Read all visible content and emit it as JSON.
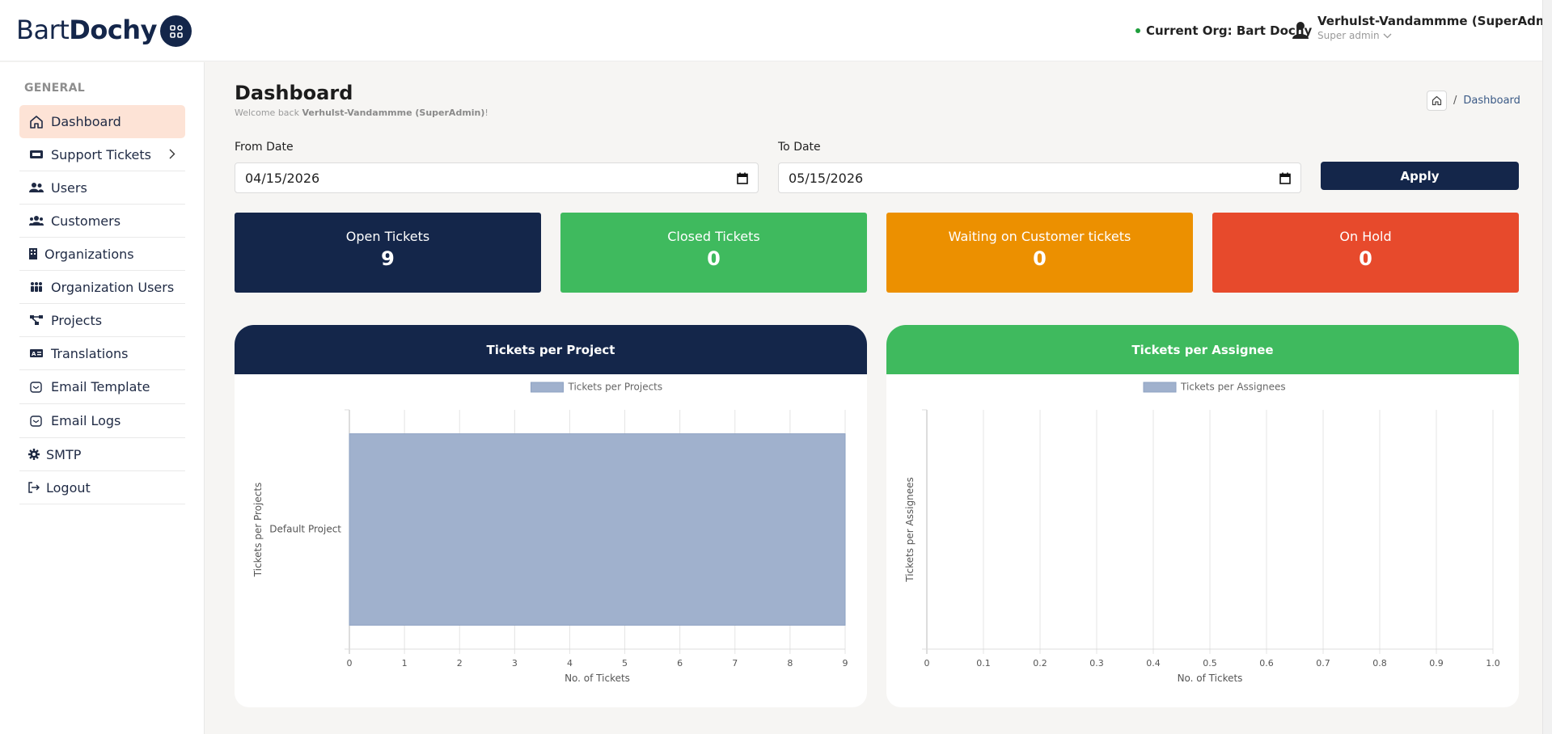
{
  "brand": {
    "part1": "Bart",
    "part2": "Dochy"
  },
  "header": {
    "org": "Current Org: Bart Dochy",
    "user_name": "Verhulst-Vandammme (SuperAdmin)",
    "user_role": "Super admin"
  },
  "sidebar": {
    "section": "GENERAL",
    "items": [
      {
        "label": "Dashboard",
        "icon": "home-icon"
      },
      {
        "label": "Support Tickets",
        "icon": "ticket-icon"
      },
      {
        "label": "Users",
        "icon": "users-icon"
      },
      {
        "label": "Customers",
        "icon": "customers-icon"
      },
      {
        "label": "Organizations",
        "icon": "building-icon"
      },
      {
        "label": "Organization Users",
        "icon": "people-group-icon"
      },
      {
        "label": "Projects",
        "icon": "sitemap-icon"
      },
      {
        "label": "Translations",
        "icon": "translate-icon"
      },
      {
        "label": "Email Template",
        "icon": "email-icon"
      },
      {
        "label": "Email Logs",
        "icon": "email-icon"
      },
      {
        "label": "SMTP",
        "icon": "gear-icon"
      },
      {
        "label": "Logout",
        "icon": "logout-icon"
      }
    ]
  },
  "page": {
    "title": "Dashboard",
    "welcome_prefix": "Welcome back ",
    "welcome_name": "Verhulst-Vandammme (SuperAdmin)",
    "welcome_suffix": "!",
    "breadcrumb": "Dashboard"
  },
  "filters": {
    "from_label": "From Date",
    "from_value": "04/15/2026",
    "to_label": "To Date",
    "to_value": "05/15/2026",
    "apply_label": "Apply"
  },
  "stats": [
    {
      "title": "Open Tickets",
      "value": "9",
      "color": "#14264a"
    },
    {
      "title": "Closed Tickets",
      "value": "0",
      "color": "#3fba5e"
    },
    {
      "title": "Waiting on Customer tickets",
      "value": "0",
      "color": "#ec9000"
    },
    {
      "title": "On Hold",
      "value": "0",
      "color": "#e74a2c"
    }
  ],
  "panels": {
    "project_title": "Tickets per Project",
    "assignee_title": "Tickets per Assignee"
  },
  "chart_data": [
    {
      "type": "bar",
      "orientation": "horizontal",
      "categories": [
        "Default Project"
      ],
      "series": [
        {
          "name": "Tickets per Projects",
          "values": [
            9
          ]
        }
      ],
      "xlabel": "No. of Tickets",
      "ylabel": "Tickets per Projects",
      "xlim": [
        0,
        9
      ],
      "xticks": [
        "0",
        "1",
        "2",
        "3",
        "4",
        "5",
        "6",
        "7",
        "8",
        "9"
      ],
      "legend": "top",
      "grid": true,
      "color": "#a0b1cd"
    },
    {
      "type": "bar",
      "orientation": "horizontal",
      "categories": [],
      "series": [
        {
          "name": "Tickets per Assignees",
          "values": []
        }
      ],
      "xlabel": "No. of Tickets",
      "ylabel": "Tickets per Assignees",
      "xlim": [
        0,
        1
      ],
      "xticks": [
        "0",
        "0.1",
        "0.2",
        "0.3",
        "0.4",
        "0.5",
        "0.6",
        "0.7",
        "0.8",
        "0.9",
        "1.0"
      ],
      "legend": "top",
      "grid": true,
      "color": "#a0b1cd"
    }
  ]
}
